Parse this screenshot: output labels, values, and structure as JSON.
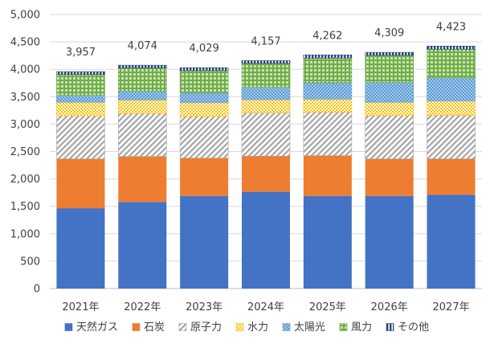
{
  "chart_data": {
    "type": "bar",
    "stacked": true,
    "title": "",
    "xlabel": "",
    "ylabel": "",
    "categories": [
      "2021年",
      "2022年",
      "2023年",
      "2024年",
      "2025年",
      "2026年",
      "2027年"
    ],
    "ylim": [
      0,
      5000
    ],
    "yticks": [
      0,
      500,
      1000,
      1500,
      2000,
      2500,
      3000,
      3500,
      4000,
      4500,
      5000
    ],
    "ytick_labels": [
      "0",
      "500",
      "1,000",
      "1,500",
      "2,000",
      "2,500",
      "3,000",
      "3,500",
      "4,000",
      "4,500",
      "5,000"
    ],
    "grid": true,
    "legend_position": "bottom",
    "totals": [
      3957,
      4074,
      4029,
      4157,
      4262,
      4309,
      4423
    ],
    "total_labels": [
      "3,957",
      "4,074",
      "4,029",
      "4,157",
      "4,262",
      "4,309",
      "4,423"
    ],
    "series": [
      {
        "name": "天然ガス",
        "color": "#4472c4",
        "pattern": "solid",
        "values": [
          1465,
          1580,
          1690,
          1765,
          1690,
          1690,
          1710
        ]
      },
      {
        "name": "石炭",
        "color": "#ed7d31",
        "pattern": "solid",
        "values": [
          900,
          830,
          690,
          650,
          735,
          675,
          655
        ]
      },
      {
        "name": "原子力",
        "color": "#a5a5a5",
        "pattern": "diagonal",
        "values": [
          785,
          785,
          760,
          790,
          795,
          790,
          795
        ]
      },
      {
        "name": "水力",
        "color": "#ffc000",
        "pattern": "checker",
        "values": [
          250,
          245,
          250,
          240,
          235,
          245,
          260
        ]
      },
      {
        "name": "太陽光",
        "color": "#5b9bd5",
        "pattern": "dots",
        "values": [
          125,
          160,
          185,
          225,
          300,
          365,
          425
        ]
      },
      {
        "name": "風力",
        "color": "#70ad47",
        "pattern": "grid",
        "values": [
          380,
          425,
          400,
          437,
          450,
          490,
          520
        ]
      },
      {
        "name": "その他",
        "color": "#264478",
        "pattern": "vstripes",
        "values": [
          52,
          49,
          54,
          50,
          57,
          54,
          58
        ]
      }
    ]
  }
}
